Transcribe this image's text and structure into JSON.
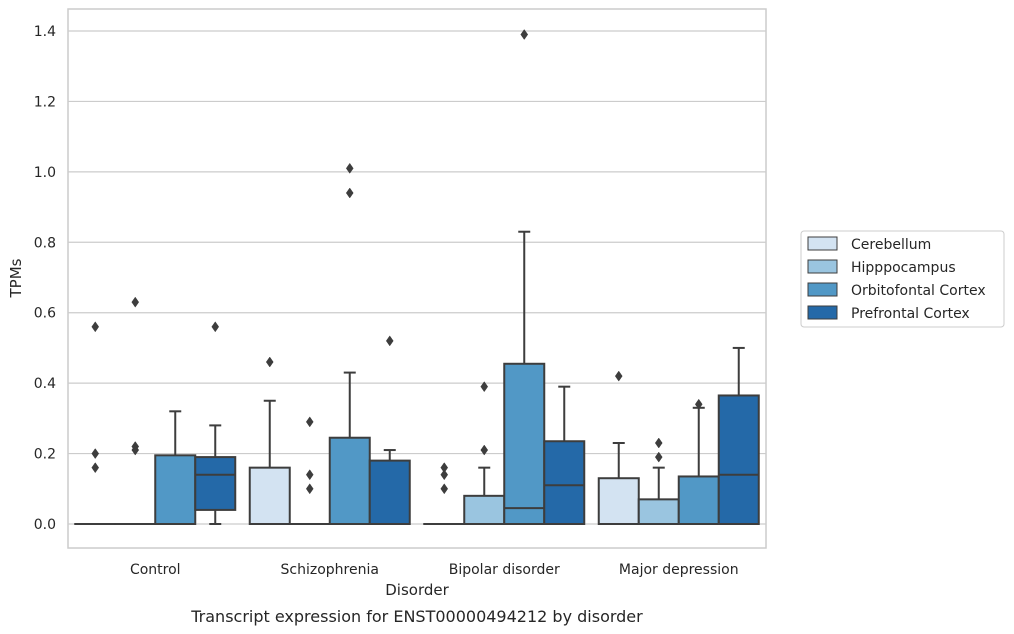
{
  "chart_data": {
    "type": "box",
    "caption": "Transcript expression for ENST00000494212 by disorder",
    "xlabel": "Disorder",
    "ylabel": "TPMs",
    "ylim": [
      -0.07,
      1.46
    ],
    "yticks": [
      0.0,
      0.2,
      0.4,
      0.6,
      0.8,
      1.0,
      1.2,
      1.4
    ],
    "yticks_labels": [
      "0.0",
      "0.2",
      "0.4",
      "0.6",
      "0.8",
      "1.0",
      "1.2",
      "1.4"
    ],
    "grid": "horizontal",
    "legend_position": "right",
    "categories": [
      "Control",
      "Schizophrenia",
      "Bipolar disorder",
      "Major depression"
    ],
    "series": [
      {
        "name": "Cerebellum",
        "color": "#d3e3f2",
        "boxes": [
          {
            "q1": 0,
            "median": 0,
            "q3": 0,
            "wlow": 0,
            "whigh": 0,
            "fliers": [
              0.56,
              0.2,
              0.16
            ]
          },
          {
            "q1": 0,
            "median": 0,
            "q3": 0.16,
            "wlow": 0,
            "whigh": 0.35,
            "fliers": [
              0.46
            ]
          },
          {
            "q1": 0,
            "median": 0,
            "q3": 0,
            "wlow": 0,
            "whigh": 0,
            "fliers": [
              0.16,
              0.14,
              0.1
            ]
          },
          {
            "q1": 0,
            "median": 0,
            "q3": 0.13,
            "wlow": 0,
            "whigh": 0.23,
            "fliers": [
              0.42
            ]
          }
        ]
      },
      {
        "name": "Hipppocampus",
        "color": "#9ac5e0",
        "boxes": [
          {
            "q1": 0,
            "median": 0,
            "q3": 0,
            "wlow": 0,
            "whigh": 0,
            "fliers": [
              0.63,
              0.22,
              0.21
            ]
          },
          {
            "q1": 0,
            "median": 0,
            "q3": 0,
            "wlow": 0,
            "whigh": 0,
            "fliers": [
              0.29,
              0.14,
              0.1
            ]
          },
          {
            "q1": 0,
            "median": 0,
            "q3": 0.08,
            "wlow": 0,
            "whigh": 0.16,
            "fliers": [
              0.39,
              0.21
            ]
          },
          {
            "q1": 0,
            "median": 0,
            "q3": 0.07,
            "wlow": 0,
            "whigh": 0.16,
            "fliers": [
              0.23,
              0.19
            ]
          }
        ]
      },
      {
        "name": "Orbitofontal Cortex",
        "color": "#5198c6",
        "boxes": [
          {
            "q1": 0,
            "median": 0,
            "q3": 0.195,
            "wlow": 0,
            "whigh": 0.32,
            "fliers": []
          },
          {
            "q1": 0,
            "median": 0,
            "q3": 0.245,
            "wlow": 0,
            "whigh": 0.43,
            "fliers": [
              1.01,
              0.94
            ]
          },
          {
            "q1": 0,
            "median": 0.045,
            "q3": 0.455,
            "wlow": 0,
            "whigh": 0.83,
            "fliers": [
              1.39
            ]
          },
          {
            "q1": 0,
            "median": 0,
            "q3": 0.135,
            "wlow": 0,
            "whigh": 0.33,
            "fliers": [
              0.34
            ]
          }
        ]
      },
      {
        "name": "Prefrontal Cortex",
        "color": "#2469a8",
        "boxes": [
          {
            "q1": 0.04,
            "median": 0.14,
            "q3": 0.19,
            "wlow": 0,
            "whigh": 0.28,
            "fliers": [
              0.56
            ]
          },
          {
            "q1": 0,
            "median": 0,
            "q3": 0.18,
            "wlow": 0,
            "whigh": 0.21,
            "fliers": [
              0.52
            ]
          },
          {
            "q1": 0,
            "median": 0.11,
            "q3": 0.235,
            "wlow": 0,
            "whigh": 0.39,
            "fliers": []
          },
          {
            "q1": 0,
            "median": 0.14,
            "q3": 0.365,
            "wlow": 0,
            "whigh": 0.5,
            "fliers": []
          }
        ]
      }
    ]
  }
}
